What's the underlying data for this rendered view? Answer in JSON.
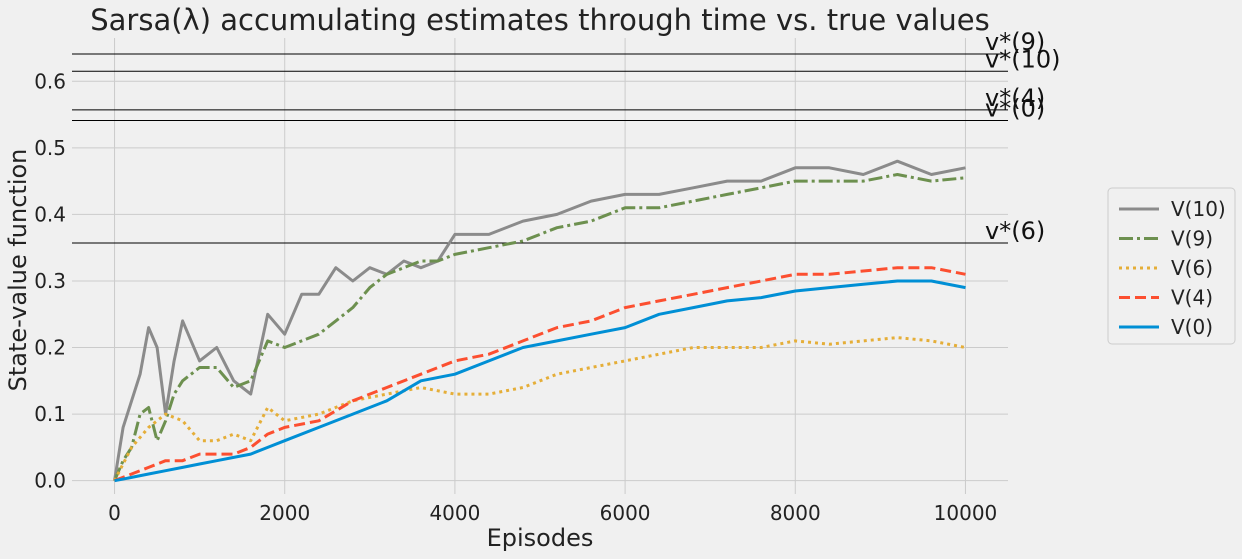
{
  "chart_data": {
    "type": "line",
    "title": "Sarsa(λ) accumulating estimates through time vs. true values",
    "xlabel": "Episodes",
    "ylabel": "State-value function",
    "xlim": [
      -500,
      10500
    ],
    "ylim": [
      -0.02,
      0.665
    ],
    "xticks": [
      0,
      2000,
      4000,
      6000,
      8000,
      10000
    ],
    "yticks": [
      0.0,
      0.1,
      0.2,
      0.3,
      0.4,
      0.5,
      0.6
    ],
    "grid": true,
    "legend_position": "right",
    "reference_lines": [
      {
        "label": "v*(9)",
        "value": 0.641
      },
      {
        "label": "v*(10)",
        "value": 0.615
      },
      {
        "label": "v*(4)",
        "value": 0.557
      },
      {
        "label": "v*(0)",
        "value": 0.541
      },
      {
        "label": "v*(6)",
        "value": 0.357
      }
    ],
    "series": [
      {
        "name": "V(10)",
        "color": "#8b8b8b",
        "dash": "solid",
        "x": [
          0,
          100,
          200,
          300,
          400,
          500,
          600,
          700,
          800,
          1000,
          1200,
          1400,
          1600,
          1800,
          2000,
          2200,
          2400,
          2600,
          2800,
          3000,
          3200,
          3400,
          3600,
          3800,
          4000,
          4400,
          4800,
          5200,
          5600,
          6000,
          6400,
          6800,
          7200,
          7600,
          8000,
          8400,
          8800,
          9200,
          9600,
          10000
        ],
        "y": [
          0.0,
          0.08,
          0.12,
          0.16,
          0.23,
          0.2,
          0.1,
          0.18,
          0.24,
          0.18,
          0.2,
          0.15,
          0.13,
          0.25,
          0.22,
          0.28,
          0.28,
          0.32,
          0.3,
          0.32,
          0.31,
          0.33,
          0.32,
          0.33,
          0.37,
          0.37,
          0.39,
          0.4,
          0.42,
          0.43,
          0.43,
          0.44,
          0.45,
          0.45,
          0.47,
          0.47,
          0.46,
          0.48,
          0.46,
          0.47
        ]
      },
      {
        "name": "V(9)",
        "color": "#6d904f",
        "dash": "dashdot",
        "x": [
          0,
          100,
          200,
          300,
          400,
          500,
          600,
          700,
          800,
          1000,
          1200,
          1400,
          1600,
          1800,
          2000,
          2200,
          2400,
          2600,
          2800,
          3000,
          3200,
          3400,
          3600,
          3800,
          4000,
          4400,
          4800,
          5200,
          5600,
          6000,
          6400,
          6800,
          7200,
          7600,
          8000,
          8400,
          8800,
          9200,
          9600,
          10000
        ],
        "y": [
          0.0,
          0.03,
          0.05,
          0.1,
          0.11,
          0.06,
          0.09,
          0.13,
          0.15,
          0.17,
          0.17,
          0.14,
          0.15,
          0.21,
          0.2,
          0.21,
          0.22,
          0.24,
          0.26,
          0.29,
          0.31,
          0.32,
          0.33,
          0.33,
          0.34,
          0.35,
          0.36,
          0.38,
          0.39,
          0.41,
          0.41,
          0.42,
          0.43,
          0.44,
          0.45,
          0.45,
          0.45,
          0.46,
          0.45,
          0.455
        ]
      },
      {
        "name": "V(6)",
        "color": "#e5ae38",
        "dash": "dotted",
        "x": [
          0,
          200,
          400,
          600,
          800,
          1000,
          1200,
          1400,
          1600,
          1800,
          2000,
          2400,
          2800,
          3200,
          3600,
          4000,
          4400,
          4800,
          5200,
          5600,
          6000,
          6400,
          6800,
          7200,
          7600,
          8000,
          8400,
          8800,
          9200,
          9600,
          10000
        ],
        "y": [
          0.0,
          0.05,
          0.08,
          0.1,
          0.09,
          0.06,
          0.06,
          0.07,
          0.06,
          0.11,
          0.09,
          0.1,
          0.12,
          0.13,
          0.14,
          0.13,
          0.13,
          0.14,
          0.16,
          0.17,
          0.18,
          0.19,
          0.2,
          0.2,
          0.2,
          0.21,
          0.205,
          0.21,
          0.215,
          0.21,
          0.2
        ]
      },
      {
        "name": "V(4)",
        "color": "#fc4f30",
        "dash": "dashed",
        "x": [
          0,
          200,
          400,
          600,
          800,
          1000,
          1200,
          1400,
          1600,
          1800,
          2000,
          2400,
          2800,
          3200,
          3600,
          4000,
          4400,
          4800,
          5200,
          5600,
          6000,
          6400,
          6800,
          7200,
          7600,
          8000,
          8400,
          8800,
          9200,
          9600,
          10000
        ],
        "y": [
          0.0,
          0.01,
          0.02,
          0.03,
          0.03,
          0.04,
          0.04,
          0.04,
          0.05,
          0.07,
          0.08,
          0.09,
          0.12,
          0.14,
          0.16,
          0.18,
          0.19,
          0.21,
          0.23,
          0.24,
          0.26,
          0.27,
          0.28,
          0.29,
          0.3,
          0.31,
          0.31,
          0.315,
          0.32,
          0.32,
          0.31
        ]
      },
      {
        "name": "V(0)",
        "color": "#008fd5",
        "dash": "solid",
        "x": [
          0,
          200,
          400,
          600,
          800,
          1000,
          1200,
          1400,
          1600,
          1800,
          2000,
          2400,
          2800,
          3200,
          3600,
          4000,
          4400,
          4800,
          5200,
          5600,
          6000,
          6400,
          6800,
          7200,
          7600,
          8000,
          8400,
          8800,
          9200,
          9600,
          10000
        ],
        "y": [
          0.0,
          0.005,
          0.01,
          0.015,
          0.02,
          0.025,
          0.03,
          0.035,
          0.04,
          0.05,
          0.06,
          0.08,
          0.1,
          0.12,
          0.15,
          0.16,
          0.18,
          0.2,
          0.21,
          0.22,
          0.23,
          0.25,
          0.26,
          0.27,
          0.275,
          0.285,
          0.29,
          0.295,
          0.3,
          0.3,
          0.29
        ]
      }
    ]
  }
}
